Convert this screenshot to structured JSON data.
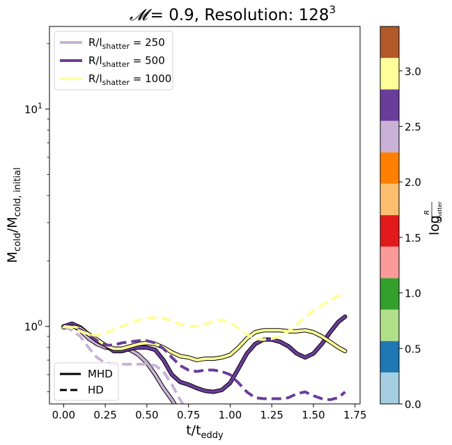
{
  "chart_data": {
    "type": "line",
    "title": {
      "mach_symbol": "𝓜",
      "mach_value": "= 0.9, Resolution: 128",
      "exponent": "3"
    },
    "xlabel": {
      "main": "t/t",
      "sub": "eddy"
    },
    "ylabel": {
      "main": "M",
      "sub1": "cold",
      "mid": "/M",
      "sub2": "cold, initial"
    },
    "x_ticks": [
      "0.00",
      "0.25",
      "0.50",
      "0.75",
      "1.00",
      "1.25",
      "1.50",
      "1.75"
    ],
    "x_tick_values": [
      0,
      0.25,
      0.5,
      0.75,
      1.0,
      1.25,
      1.5,
      1.75
    ],
    "xlim": [
      -0.085,
      1.78
    ],
    "ylim": [
      0.44,
      24
    ],
    "yscale": "log",
    "y_ticks": [
      {
        "value": 1,
        "base": "10",
        "exp": "0"
      },
      {
        "value": 10,
        "base": "10",
        "exp": "1"
      }
    ],
    "legend_top": {
      "placement": "upper-left",
      "entries": [
        {
          "prefix": "R/l",
          "sub": "shatter",
          "suffix": " = 250",
          "color": "#cab2d6"
        },
        {
          "prefix": "R/l",
          "sub": "shatter",
          "suffix": " = 500",
          "color": "#6a3d9a"
        },
        {
          "prefix": "R/l",
          "sub": "shatter",
          "suffix": " = 1000",
          "color": "#ffff99"
        }
      ]
    },
    "legend_bottom": {
      "placement": "lower-left",
      "entries": [
        {
          "label": "MHD",
          "style": "solid"
        },
        {
          "label": "HD",
          "style": "dashed"
        }
      ]
    },
    "series": [
      {
        "ratio": "250",
        "color": "#cab2d6",
        "style": "solid",
        "points": [
          [
            0,
            1.0
          ],
          [
            0.05,
            1.02
          ],
          [
            0.1,
            0.96
          ],
          [
            0.15,
            0.88
          ],
          [
            0.2,
            0.83
          ],
          [
            0.25,
            0.8
          ],
          [
            0.3,
            0.79
          ],
          [
            0.35,
            0.79
          ],
          [
            0.4,
            0.78
          ],
          [
            0.45,
            0.74
          ],
          [
            0.5,
            0.68
          ],
          [
            0.55,
            0.6
          ],
          [
            0.6,
            0.52
          ],
          [
            0.65,
            0.46
          ],
          [
            0.7,
            0.4
          ]
        ]
      },
      {
        "ratio": "500",
        "color": "#6a3d9a",
        "style": "solid",
        "points": [
          [
            0,
            1.0
          ],
          [
            0.05,
            1.03
          ],
          [
            0.1,
            0.99
          ],
          [
            0.15,
            0.92
          ],
          [
            0.2,
            0.86
          ],
          [
            0.25,
            0.82
          ],
          [
            0.3,
            0.77
          ],
          [
            0.35,
            0.77
          ],
          [
            0.4,
            0.79
          ],
          [
            0.45,
            0.8
          ],
          [
            0.5,
            0.8
          ],
          [
            0.55,
            0.78
          ],
          [
            0.6,
            0.7
          ],
          [
            0.65,
            0.6
          ],
          [
            0.7,
            0.555
          ],
          [
            0.75,
            0.54
          ],
          [
            0.8,
            0.52
          ],
          [
            0.85,
            0.505
          ],
          [
            0.9,
            0.5
          ],
          [
            0.95,
            0.51
          ],
          [
            1.0,
            0.55
          ],
          [
            1.05,
            0.64
          ],
          [
            1.1,
            0.75
          ],
          [
            1.15,
            0.83
          ],
          [
            1.2,
            0.87
          ],
          [
            1.25,
            0.87
          ],
          [
            1.3,
            0.85
          ],
          [
            1.35,
            0.81
          ],
          [
            1.4,
            0.75
          ],
          [
            1.45,
            0.72
          ],
          [
            1.5,
            0.75
          ],
          [
            1.55,
            0.83
          ],
          [
            1.6,
            0.94
          ],
          [
            1.65,
            1.05
          ],
          [
            1.69,
            1.11
          ]
        ]
      },
      {
        "ratio": "1000",
        "color": "#ffff99",
        "style": "solid",
        "points": [
          [
            0,
            0.99
          ],
          [
            0.05,
            1.0
          ],
          [
            0.1,
            0.98
          ],
          [
            0.15,
            0.92
          ],
          [
            0.2,
            0.87
          ],
          [
            0.25,
            0.82
          ],
          [
            0.3,
            0.79
          ],
          [
            0.35,
            0.79
          ],
          [
            0.4,
            0.81
          ],
          [
            0.45,
            0.83
          ],
          [
            0.5,
            0.84
          ],
          [
            0.55,
            0.83
          ],
          [
            0.6,
            0.8
          ],
          [
            0.65,
            0.76
          ],
          [
            0.7,
            0.73
          ],
          [
            0.75,
            0.72
          ],
          [
            0.8,
            0.7
          ],
          [
            0.85,
            0.71
          ],
          [
            0.9,
            0.71
          ],
          [
            0.95,
            0.72
          ],
          [
            1.0,
            0.74
          ],
          [
            1.05,
            0.8
          ],
          [
            1.1,
            0.88
          ],
          [
            1.15,
            0.94
          ],
          [
            1.2,
            0.96
          ],
          [
            1.25,
            0.96
          ],
          [
            1.3,
            0.96
          ],
          [
            1.35,
            0.95
          ],
          [
            1.4,
            0.95
          ],
          [
            1.45,
            0.96
          ],
          [
            1.5,
            0.94
          ],
          [
            1.55,
            0.9
          ],
          [
            1.6,
            0.85
          ],
          [
            1.65,
            0.8
          ],
          [
            1.69,
            0.77
          ]
        ]
      },
      {
        "ratio": "250",
        "color": "#cab2d6",
        "style": "dashed",
        "points": [
          [
            0,
            1.0
          ],
          [
            0.05,
            0.96
          ],
          [
            0.1,
            0.9
          ],
          [
            0.15,
            0.8
          ],
          [
            0.2,
            0.72
          ],
          [
            0.25,
            0.68
          ],
          [
            0.3,
            0.67
          ],
          [
            0.35,
            0.67
          ],
          [
            0.4,
            0.67
          ],
          [
            0.45,
            0.67
          ],
          [
            0.5,
            0.67
          ],
          [
            0.55,
            0.66
          ],
          [
            0.6,
            0.62
          ],
          [
            0.65,
            0.54
          ],
          [
            0.7,
            0.46
          ],
          [
            0.75,
            0.4
          ]
        ]
      },
      {
        "ratio": "500",
        "color": "#6a3d9a",
        "style": "dashed",
        "points": [
          [
            0,
            1.0
          ],
          [
            0.05,
            1.0
          ],
          [
            0.1,
            0.97
          ],
          [
            0.15,
            0.92
          ],
          [
            0.2,
            0.86
          ],
          [
            0.25,
            0.82
          ],
          [
            0.3,
            0.82
          ],
          [
            0.35,
            0.84
          ],
          [
            0.4,
            0.85
          ],
          [
            0.45,
            0.86
          ],
          [
            0.5,
            0.86
          ],
          [
            0.55,
            0.84
          ],
          [
            0.6,
            0.79
          ],
          [
            0.65,
            0.72
          ],
          [
            0.7,
            0.66
          ],
          [
            0.75,
            0.63
          ],
          [
            0.8,
            0.62
          ],
          [
            0.85,
            0.63
          ],
          [
            0.9,
            0.63
          ],
          [
            0.95,
            0.62
          ],
          [
            1.0,
            0.6
          ],
          [
            1.05,
            0.55
          ],
          [
            1.1,
            0.5
          ],
          [
            1.15,
            0.47
          ],
          [
            1.2,
            0.465
          ],
          [
            1.25,
            0.465
          ],
          [
            1.3,
            0.465
          ],
          [
            1.35,
            0.47
          ],
          [
            1.4,
            0.49
          ],
          [
            1.45,
            0.5
          ],
          [
            1.5,
            0.48
          ],
          [
            1.55,
            0.465
          ],
          [
            1.6,
            0.46
          ],
          [
            1.65,
            0.47
          ],
          [
            1.69,
            0.5
          ]
        ]
      },
      {
        "ratio": "1000",
        "color": "#ffff99",
        "style": "dashed",
        "points": [
          [
            0,
            1.0
          ],
          [
            0.05,
            0.99
          ],
          [
            0.1,
            0.95
          ],
          [
            0.15,
            0.92
          ],
          [
            0.2,
            0.91
          ],
          [
            0.25,
            0.93
          ],
          [
            0.3,
            0.97
          ],
          [
            0.35,
            1.0
          ],
          [
            0.4,
            1.03
          ],
          [
            0.45,
            1.07
          ],
          [
            0.5,
            1.09
          ],
          [
            0.55,
            1.1
          ],
          [
            0.6,
            1.09
          ],
          [
            0.65,
            1.06
          ],
          [
            0.7,
            1.02
          ],
          [
            0.75,
            1.0
          ],
          [
            0.8,
            1.0
          ],
          [
            0.85,
            1.02
          ],
          [
            0.9,
            1.06
          ],
          [
            0.95,
            1.07
          ],
          [
            1.0,
            1.04
          ],
          [
            1.05,
            0.98
          ],
          [
            1.1,
            0.92
          ],
          [
            1.15,
            0.88
          ],
          [
            1.2,
            0.87
          ],
          [
            1.25,
            0.88
          ],
          [
            1.3,
            0.9
          ],
          [
            1.35,
            0.95
          ],
          [
            1.4,
            1.02
          ],
          [
            1.45,
            1.1
          ],
          [
            1.5,
            1.18
          ],
          [
            1.55,
            1.25
          ],
          [
            1.6,
            1.32
          ],
          [
            1.65,
            1.38
          ],
          [
            1.69,
            1.41
          ]
        ]
      }
    ],
    "colorbar": {
      "label": "log",
      "fraction_numerator": "R",
      "fraction_denominator_main": "l",
      "fraction_denominator_sub": "shatter",
      "range": [
        0,
        3.4
      ],
      "colors": [
        "#a6cee3",
        "#1f78b4",
        "#b2df8a",
        "#33a02c",
        "#fb9a99",
        "#e31a1c",
        "#fdbf6f",
        "#ff7f00",
        "#cab2d6",
        "#6a3d9a",
        "#ffff99",
        "#b15928"
      ],
      "ticks": [
        "0.0",
        "0.5",
        "1.0",
        "1.5",
        "2.0",
        "2.5",
        "3.0"
      ],
      "tick_values": [
        0,
        0.5,
        1.0,
        1.5,
        2.0,
        2.5,
        3.0
      ]
    }
  }
}
